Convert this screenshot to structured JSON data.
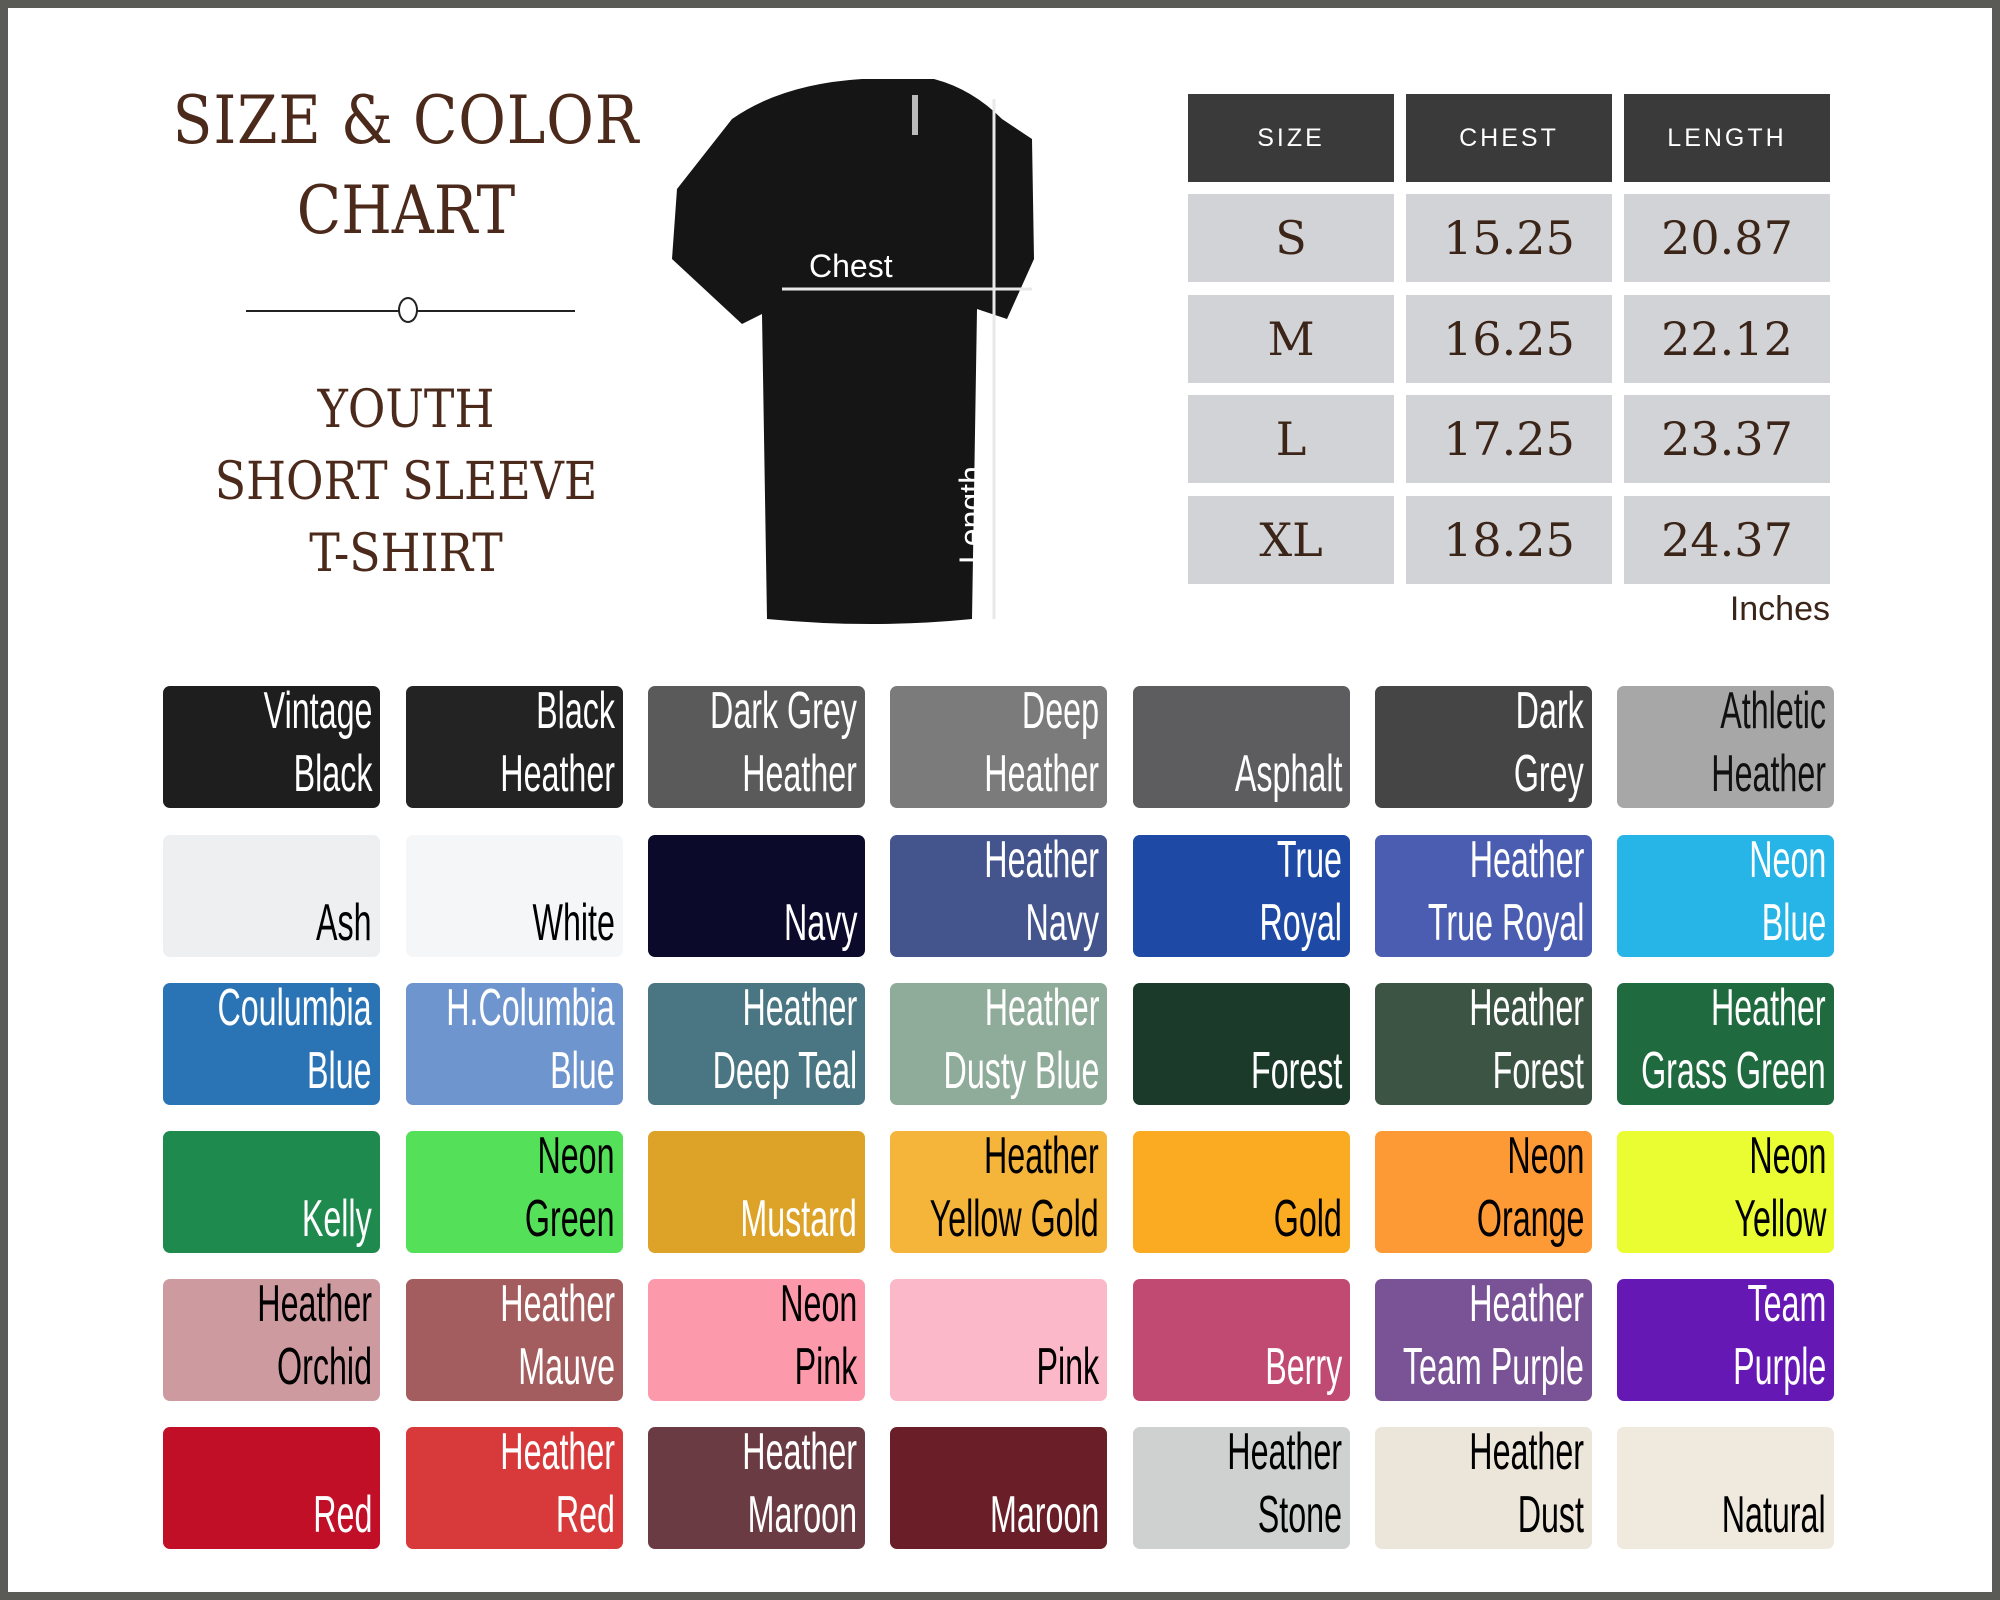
{
  "heading": {
    "line1": "SIZE & COLOR",
    "line2": "CHART"
  },
  "product": {
    "line1": "YOUTH",
    "line2": "SHORT SLEEVE",
    "line3": "T-SHIRT"
  },
  "shirt": {
    "chest_label": "Chest",
    "length_label": "Length"
  },
  "size_table": {
    "headers": [
      "SIZE",
      "CHEST",
      "LENGTH"
    ],
    "rows": [
      [
        "S",
        "15.25",
        "20.87"
      ],
      [
        "M",
        "16.25",
        "22.12"
      ],
      [
        "L",
        "17.25",
        "23.37"
      ],
      [
        "XL",
        "18.25",
        "24.37"
      ]
    ],
    "unit": "Inches"
  },
  "colors": [
    {
      "l1": "Vintage",
      "l2": "Black",
      "hex": "#1e1e1e",
      "text": "#ffffff"
    },
    {
      "l1": "Black",
      "l2": "Heather",
      "hex": "#232323",
      "text": "#ffffff"
    },
    {
      "l1": "Dark Grey",
      "l2": "Heather",
      "hex": "#5a5a5a",
      "text": "#ffffff"
    },
    {
      "l1": "Deep",
      "l2": "Heather",
      "hex": "#7b7b7b",
      "text": "#ffffff"
    },
    {
      "l1": "",
      "l2": "Asphalt",
      "hex": "#5d5d5f",
      "text": "#ffffff"
    },
    {
      "l1": "Dark",
      "l2": "Grey",
      "hex": "#454546",
      "text": "#ffffff"
    },
    {
      "l1": "Athletic",
      "l2": "Heather",
      "hex": "#a7a7a7",
      "text": "#111111"
    },
    {
      "l1": "",
      "l2": "Ash",
      "hex": "#eeeff1",
      "text": "#000000"
    },
    {
      "l1": "",
      "l2": "White",
      "hex": "#f5f6f8",
      "text": "#000000"
    },
    {
      "l1": "",
      "l2": "Navy",
      "hex": "#0c0a2a",
      "text": "#ffffff"
    },
    {
      "l1": "Heather",
      "l2": "Navy",
      "hex": "#44558d",
      "text": "#ffffff"
    },
    {
      "l1": "True",
      "l2": "Royal",
      "hex": "#1e4aa5",
      "text": "#ffffff"
    },
    {
      "l1": "Heather",
      "l2": "True Royal",
      "hex": "#4a5db0",
      "text": "#ffffff"
    },
    {
      "l1": "Neon",
      "l2": "Blue",
      "hex": "#27b4e6",
      "text": "#ffffff"
    },
    {
      "l1": "Coulumbia",
      "l2": "Blue",
      "hex": "#2a74b6",
      "text": "#ffffff"
    },
    {
      "l1": "H.Columbia",
      "l2": "Blue",
      "hex": "#6f95cf",
      "text": "#ffffff"
    },
    {
      "l1": "Heather",
      "l2": "Deep Teal",
      "hex": "#4a7582",
      "text": "#ffffff"
    },
    {
      "l1": "Heather",
      "l2": "Dusty Blue",
      "hex": "#8fab9a",
      "text": "#ffffff"
    },
    {
      "l1": "",
      "l2": "Forest",
      "hex": "#1b3a2a",
      "text": "#ffffff"
    },
    {
      "l1": "Heather",
      "l2": "Forest",
      "hex": "#3b5443",
      "text": "#ffffff"
    },
    {
      "l1": "Heather",
      "l2": "Grass Green",
      "hex": "#1f6a3e",
      "text": "#ffffff"
    },
    {
      "l1": "",
      "l2": "Kelly",
      "hex": "#1f8a4d",
      "text": "#ffffff"
    },
    {
      "l1": "Neon",
      "l2": "Green",
      "hex": "#55e05a",
      "text": "#000000"
    },
    {
      "l1": "",
      "l2": "Mustard",
      "hex": "#dda228",
      "text": "#ffffff"
    },
    {
      "l1": "Heather",
      "l2": "Yellow Gold",
      "hex": "#f5b43a",
      "text": "#000000"
    },
    {
      "l1": "",
      "l2": "Gold",
      "hex": "#fbab22",
      "text": "#000000"
    },
    {
      "l1": "Neon",
      "l2": "Orange",
      "hex": "#fd9a35",
      "text": "#000000"
    },
    {
      "l1": "Neon",
      "l2": "Yellow",
      "hex": "#eafd33",
      "text": "#000000"
    },
    {
      "l1": "Heather",
      "l2": "Orchid",
      "hex": "#cd9b9f",
      "text": "#000000"
    },
    {
      "l1": "Heather",
      "l2": "Mauve",
      "hex": "#a45d5e",
      "text": "#ffffff"
    },
    {
      "l1": "Neon",
      "l2": "Pink",
      "hex": "#fc9aab",
      "text": "#000000"
    },
    {
      "l1": "",
      "l2": "Pink",
      "hex": "#fbb8c8",
      "text": "#000000"
    },
    {
      "l1": "",
      "l2": "Berry",
      "hex": "#c04a72",
      "text": "#ffffff"
    },
    {
      "l1": "Heather",
      "l2": "Team Purple",
      "hex": "#7a5296",
      "text": "#ffffff"
    },
    {
      "l1": "Team",
      "l2": "Purple",
      "hex": "#6518b4",
      "text": "#ffffff"
    },
    {
      "l1": "",
      "l2": "Red",
      "hex": "#c10f28",
      "text": "#ffffff"
    },
    {
      "l1": "Heather",
      "l2": "Red",
      "hex": "#d83a3b",
      "text": "#ffffff"
    },
    {
      "l1": "Heather",
      "l2": "Maroon",
      "hex": "#6b3b44",
      "text": "#ffffff"
    },
    {
      "l1": "",
      "l2": "Maroon",
      "hex": "#6a1f28",
      "text": "#ffffff"
    },
    {
      "l1": "Heather",
      "l2": "Stone",
      "hex": "#cfd0d0",
      "text": "#000000"
    },
    {
      "l1": "Heather",
      "l2": "Dust",
      "hex": "#ece6da",
      "text": "#000000"
    },
    {
      "l1": "",
      "l2": "Natural",
      "hex": "#efe9de",
      "text": "#000000"
    }
  ]
}
